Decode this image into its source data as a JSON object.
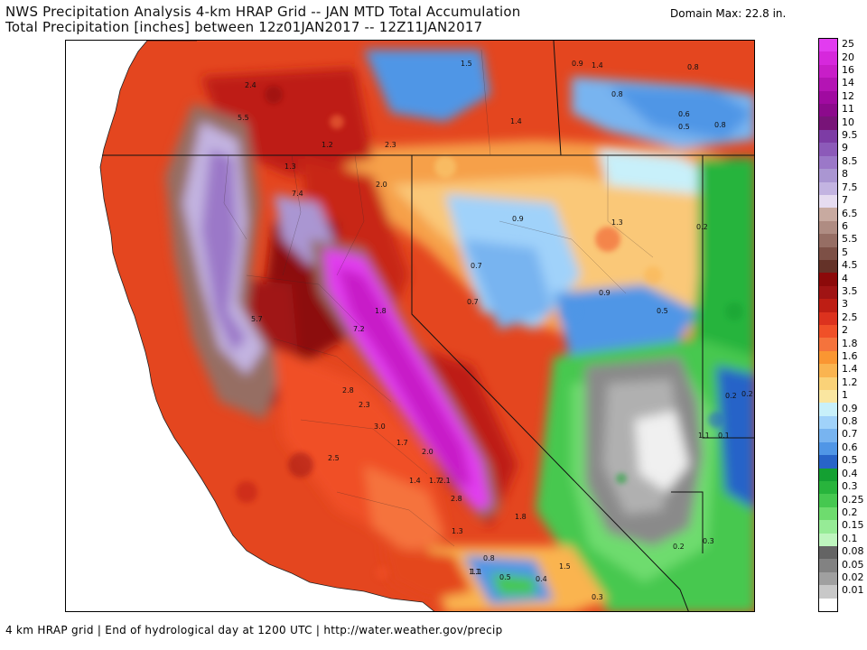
{
  "header": {
    "title_line1": "NWS Precipitation Analysis 4-km HRAP Grid -- JAN MTD Total Accumulation",
    "title_line2": "Total Precipitation [inches] between 12z01JAN2017 -- 12Z11JAN2017",
    "domain_max": "Domain Max: 22.8 in."
  },
  "footer": {
    "text": "4 km HRAP grid | End of hydrological day at 1200 UTC | http://water.weather.gov/precip"
  },
  "legend": {
    "entries": [
      {
        "label": "25",
        "color": "#e23cf0"
      },
      {
        "label": "20",
        "color": "#d628dc"
      },
      {
        "label": "16",
        "color": "#c81ec8"
      },
      {
        "label": "14",
        "color": "#b414b4"
      },
      {
        "label": "12",
        "color": "#a00aa0"
      },
      {
        "label": "11",
        "color": "#8c0a8c"
      },
      {
        "label": "10",
        "color": "#781478"
      },
      {
        "label": "9.5",
        "color": "#7d3ca5"
      },
      {
        "label": "9",
        "color": "#8c5ab9"
      },
      {
        "label": "8.5",
        "color": "#9b78c8"
      },
      {
        "label": "8",
        "color": "#aa96d2"
      },
      {
        "label": "7.5",
        "color": "#c3b4e1"
      },
      {
        "label": "7",
        "color": "#e6dcf0"
      },
      {
        "label": "6.5",
        "color": "#c8aaa0"
      },
      {
        "label": "6",
        "color": "#af8c82"
      },
      {
        "label": "5.5",
        "color": "#966e64"
      },
      {
        "label": "5",
        "color": "#7d5046"
      },
      {
        "label": "4.5",
        "color": "#643228"
      },
      {
        "label": "4",
        "color": "#8c0a0a"
      },
      {
        "label": "3.5",
        "color": "#a01414"
      },
      {
        "label": "3",
        "color": "#be1e14"
      },
      {
        "label": "2.5",
        "color": "#dc321e"
      },
      {
        "label": "2",
        "color": "#f05028"
      },
      {
        "label": "1.8",
        "color": "#f5733c"
      },
      {
        "label": "1.6",
        "color": "#fa9632"
      },
      {
        "label": "1.4",
        "color": "#fab450"
      },
      {
        "label": "1.2",
        "color": "#fad278"
      },
      {
        "label": "1",
        "color": "#fae6a0"
      },
      {
        "label": "0.9",
        "color": "#c8f0fa"
      },
      {
        "label": "0.8",
        "color": "#a0d2fa"
      },
      {
        "label": "0.7",
        "color": "#78b4f0"
      },
      {
        "label": "0.6",
        "color": "#5096e6"
      },
      {
        "label": "0.5",
        "color": "#2864c8"
      },
      {
        "label": "0.4",
        "color": "#14a032"
      },
      {
        "label": "0.3",
        "color": "#28b43c"
      },
      {
        "label": "0.25",
        "color": "#46c850"
      },
      {
        "label": "0.2",
        "color": "#6edc6e"
      },
      {
        "label": "0.15",
        "color": "#96eb96"
      },
      {
        "label": "0.1",
        "color": "#bef5be"
      },
      {
        "label": "0.08",
        "color": "#646464"
      },
      {
        "label": "0.05",
        "color": "#828282"
      },
      {
        "label": "0.02",
        "color": "#a0a0a0"
      },
      {
        "label": "0.01",
        "color": "#c8c8c8"
      }
    ],
    "bottom_color": "#ffffff"
  },
  "map": {
    "value_labels": [
      "2.4",
      "5.5",
      "1.2",
      "2.3",
      "1.3",
      "2.0",
      "7.4",
      "1.5",
      "1.4",
      "0.9",
      "1.4",
      "0.8",
      "0.8",
      "0.6",
      "0.5",
      "0.8",
      "0.9",
      "1.3",
      "0.2",
      "0.7",
      "0.7",
      "0.9",
      "0.5",
      "1.8",
      "7.2",
      "5.7",
      "2.8",
      "2.3",
      "3.0",
      "1.7",
      "2.0",
      "1.4",
      "1.7",
      "2.1",
      "2.8",
      "1.3",
      "1.8",
      "0.8",
      "1.1",
      "0.5",
      "0.4",
      "1.5",
      "0.3",
      "1.1",
      "1.1",
      "0.1",
      "0.2",
      "0.3",
      "0.2",
      "0.2",
      "2.5"
    ]
  }
}
